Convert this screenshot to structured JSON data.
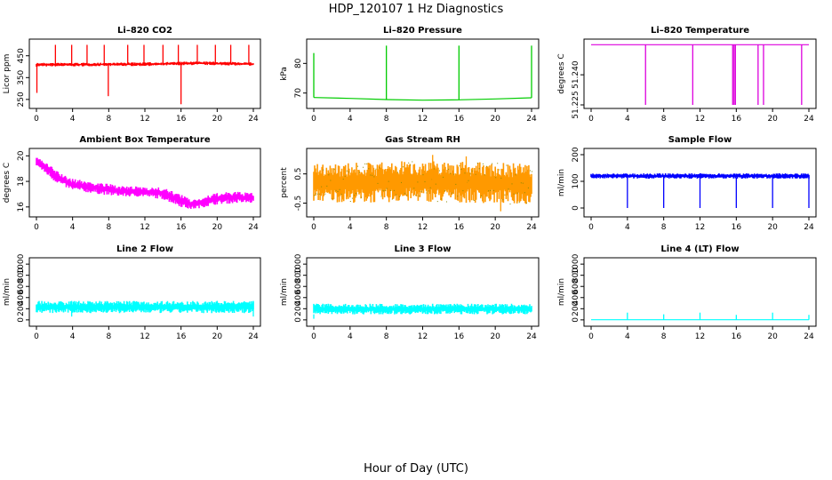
{
  "page": {
    "title": "HDP_120107  1 Hz Diagnostics",
    "xlabel": "Hour of Day (UTC)"
  },
  "chart_data": [
    {
      "type": "line",
      "title": "Li–820 CO2",
      "ylabel": "Licor ppm",
      "color": "#ff0000",
      "xlim": [
        0,
        24
      ],
      "ylim": [
        225,
        510
      ],
      "xticks": [
        0,
        4,
        8,
        12,
        16,
        20,
        24
      ],
      "yticks": [
        250,
        350,
        450
      ],
      "style": "band",
      "band": [
        {
          "x": 0,
          "lo": 400,
          "hi": 418
        },
        {
          "x": 6,
          "lo": 402,
          "hi": 418
        },
        {
          "x": 12,
          "lo": 403,
          "hi": 420
        },
        {
          "x": 18,
          "lo": 408,
          "hi": 424
        },
        {
          "x": 24,
          "lo": 404,
          "hi": 420
        }
      ],
      "spikes": [
        {
          "x": 0.05,
          "from": 410,
          "to": 280
        },
        {
          "x": 2.1,
          "from": 410,
          "to": 500
        },
        {
          "x": 3.9,
          "from": 410,
          "to": 500
        },
        {
          "x": 5.6,
          "from": 410,
          "to": 500
        },
        {
          "x": 7.5,
          "from": 410,
          "to": 500
        },
        {
          "x": 7.95,
          "from": 410,
          "to": 265
        },
        {
          "x": 10.1,
          "from": 410,
          "to": 500
        },
        {
          "x": 11.9,
          "from": 410,
          "to": 500
        },
        {
          "x": 14.0,
          "from": 410,
          "to": 500
        },
        {
          "x": 15.7,
          "from": 410,
          "to": 500
        },
        {
          "x": 16.0,
          "from": 410,
          "to": 228
        },
        {
          "x": 17.8,
          "from": 410,
          "to": 500
        },
        {
          "x": 19.8,
          "from": 410,
          "to": 500
        },
        {
          "x": 21.5,
          "from": 410,
          "to": 500
        },
        {
          "x": 23.5,
          "from": 410,
          "to": 500
        }
      ]
    },
    {
      "type": "line",
      "title": "Li–820 Pressure",
      "ylabel": "kPa",
      "color": "#00cc00",
      "xlim": [
        0,
        24
      ],
      "ylim": [
        66,
        87
      ],
      "xticks": [
        0,
        4,
        8,
        12,
        16,
        20,
        24
      ],
      "yticks": [
        70,
        80
      ],
      "style": "line",
      "line": [
        {
          "x": 0,
          "y": 68.5
        },
        {
          "x": 4,
          "y": 68.2
        },
        {
          "x": 8,
          "y": 67.8
        },
        {
          "x": 12,
          "y": 67.6
        },
        {
          "x": 16,
          "y": 67.7
        },
        {
          "x": 20,
          "y": 68.0
        },
        {
          "x": 24,
          "y": 68.4
        }
      ],
      "spikes": [
        {
          "x": 0.0,
          "from": 68.5,
          "to": 83.5
        },
        {
          "x": 8.0,
          "from": 67.8,
          "to": 86.0
        },
        {
          "x": 16.0,
          "from": 67.7,
          "to": 86.0
        },
        {
          "x": 24.0,
          "from": 68.4,
          "to": 86.0
        }
      ]
    },
    {
      "type": "line",
      "title": "Li–820 Temperature",
      "ylabel": "degrees C",
      "color": "#dd00dd",
      "xlim": [
        0,
        24
      ],
      "ylim": [
        51.225,
        51.256
      ],
      "xticks": [
        0,
        4,
        8,
        12,
        16,
        20,
        24
      ],
      "yticks": [
        51.225,
        51.24
      ],
      "ytick_labels": [
        "51.225",
        "51.240"
      ],
      "style": "line",
      "line": [
        {
          "x": 0,
          "y": 51.255
        },
        {
          "x": 24,
          "y": 51.255
        }
      ],
      "spikes": [
        {
          "x": 6.0,
          "from": 51.255,
          "to": 51.225
        },
        {
          "x": 11.2,
          "from": 51.255,
          "to": 51.225
        },
        {
          "x": 15.6,
          "from": 51.255,
          "to": 51.225
        },
        {
          "x": 15.75,
          "from": 51.255,
          "to": 51.225
        },
        {
          "x": 15.9,
          "from": 51.255,
          "to": 51.225
        },
        {
          "x": 18.4,
          "from": 51.255,
          "to": 51.225
        },
        {
          "x": 19.0,
          "from": 51.255,
          "to": 51.225
        },
        {
          "x": 23.2,
          "from": 51.255,
          "to": 51.225
        }
      ]
    },
    {
      "type": "line",
      "title": "Ambient Box Temperature",
      "ylabel": "degrees C",
      "color": "#ff00ff",
      "xlim": [
        0,
        24
      ],
      "ylim": [
        15.5,
        20.3
      ],
      "xticks": [
        0,
        4,
        8,
        12,
        16,
        20,
        24
      ],
      "yticks": [
        16,
        18,
        20
      ],
      "style": "band",
      "band": [
        {
          "x": 0,
          "lo": 19.2,
          "hi": 20.0
        },
        {
          "x": 1,
          "lo": 18.6,
          "hi": 19.5
        },
        {
          "x": 2,
          "lo": 18.0,
          "hi": 19.0
        },
        {
          "x": 3,
          "lo": 17.6,
          "hi": 18.5
        },
        {
          "x": 4,
          "lo": 17.3,
          "hi": 18.2
        },
        {
          "x": 6,
          "lo": 17.1,
          "hi": 18.0
        },
        {
          "x": 8,
          "lo": 16.9,
          "hi": 17.8
        },
        {
          "x": 10,
          "lo": 16.8,
          "hi": 17.6
        },
        {
          "x": 12,
          "lo": 16.8,
          "hi": 17.6
        },
        {
          "x": 14,
          "lo": 16.6,
          "hi": 17.5
        },
        {
          "x": 16,
          "lo": 16.0,
          "hi": 17.0
        },
        {
          "x": 17,
          "lo": 15.8,
          "hi": 16.6
        },
        {
          "x": 18,
          "lo": 15.9,
          "hi": 16.7
        },
        {
          "x": 20,
          "lo": 16.2,
          "hi": 17.1
        },
        {
          "x": 22,
          "lo": 16.3,
          "hi": 17.2
        },
        {
          "x": 24,
          "lo": 16.3,
          "hi": 17.1
        }
      ],
      "spikes": []
    },
    {
      "type": "line",
      "title": "Gas Stream RH",
      "ylabel": "percent",
      "color": "#ff9900",
      "color2": "#888800",
      "xlim": [
        0,
        24
      ],
      "ylim": [
        -0.85,
        1.25
      ],
      "xticks": [
        0,
        4,
        8,
        12,
        16,
        20,
        24
      ],
      "yticks": [
        -0.5,
        0.5
      ],
      "ytick_labels": [
        "-0.5",
        "0.5"
      ],
      "style": "band",
      "band": [
        {
          "x": 0,
          "lo": -0.45,
          "hi": 0.85
        },
        {
          "x": 6,
          "lo": -0.5,
          "hi": 0.9
        },
        {
          "x": 12,
          "lo": -0.45,
          "hi": 0.95
        },
        {
          "x": 18,
          "lo": -0.5,
          "hi": 0.9
        },
        {
          "x": 24,
          "lo": -0.55,
          "hi": 0.85
        }
      ],
      "spikes": [
        {
          "x": 20.6,
          "from": 0.0,
          "to": -0.78
        },
        {
          "x": 13.1,
          "from": 0.0,
          "to": 1.15
        },
        {
          "x": 16.8,
          "from": 0.0,
          "to": 1.1
        }
      ]
    },
    {
      "type": "line",
      "title": "Sample Flow",
      "ylabel": "ml/min",
      "color": "#0000ff",
      "xlim": [
        0,
        24
      ],
      "ylim": [
        -20,
        210
      ],
      "xticks": [
        0,
        4,
        8,
        12,
        16,
        20,
        24
      ],
      "yticks": [
        0,
        100,
        200
      ],
      "style": "band",
      "band": [
        {
          "x": 0,
          "lo": 110,
          "hi": 130
        },
        {
          "x": 24,
          "lo": 110,
          "hi": 130
        }
      ],
      "spikes": [
        {
          "x": 4.0,
          "from": 115,
          "to": 0
        },
        {
          "x": 8.0,
          "from": 115,
          "to": 0
        },
        {
          "x": 12.0,
          "from": 115,
          "to": 0
        },
        {
          "x": 16.0,
          "from": 115,
          "to": 0
        },
        {
          "x": 20.0,
          "from": 115,
          "to": 0
        },
        {
          "x": 24.0,
          "from": 115,
          "to": 0
        }
      ]
    },
    {
      "type": "line",
      "title": "Line 2 Flow",
      "ylabel": "ml/min",
      "color": "#00ffff",
      "xlim": [
        0,
        24
      ],
      "ylim": [
        -50,
        1050
      ],
      "xticks": [
        0,
        4,
        8,
        12,
        16,
        20,
        24
      ],
      "yticks": [
        0,
        200,
        400,
        600,
        800,
        1000
      ],
      "style": "band",
      "band": [
        {
          "x": 0,
          "lo": 120,
          "hi": 340
        },
        {
          "x": 24,
          "lo": 120,
          "hi": 340
        }
      ],
      "spikes": [
        {
          "x": 3.9,
          "from": 340,
          "to": 60
        },
        {
          "x": 24.0,
          "from": 340,
          "to": 60
        }
      ]
    },
    {
      "type": "line",
      "title": "Line 3 Flow",
      "ylabel": "ml/min",
      "color": "#00ffff",
      "xlim": [
        0,
        24
      ],
      "ylim": [
        -50,
        1050
      ],
      "xticks": [
        0,
        4,
        8,
        12,
        16,
        20,
        24
      ],
      "yticks": [
        0,
        200,
        400,
        600,
        800,
        1000
      ],
      "style": "band",
      "band": [
        {
          "x": 0,
          "lo": 100,
          "hi": 290
        },
        {
          "x": 24,
          "lo": 100,
          "hi": 290
        }
      ],
      "spikes": [
        {
          "x": 0.0,
          "from": 100,
          "to": 20
        }
      ]
    },
    {
      "type": "line",
      "title": "Line 4 (LT) Flow",
      "ylabel": "ml/min",
      "color": "#00ffff",
      "xlim": [
        0,
        24
      ],
      "ylim": [
        -50,
        1050
      ],
      "xticks": [
        0,
        4,
        8,
        12,
        16,
        20,
        24
      ],
      "yticks": [
        0,
        200,
        400,
        600,
        800,
        1000
      ],
      "style": "line",
      "line": [
        {
          "x": 0,
          "y": 2
        },
        {
          "x": 24,
          "y": 2
        }
      ],
      "spikes": [
        {
          "x": 4.0,
          "from": 2,
          "to": 130
        },
        {
          "x": 8.0,
          "from": 2,
          "to": 100
        },
        {
          "x": 12.0,
          "from": 2,
          "to": 130
        },
        {
          "x": 16.0,
          "from": 2,
          "to": 90
        },
        {
          "x": 20.0,
          "from": 2,
          "to": 130
        },
        {
          "x": 24.0,
          "from": 2,
          "to": 90
        }
      ]
    }
  ]
}
